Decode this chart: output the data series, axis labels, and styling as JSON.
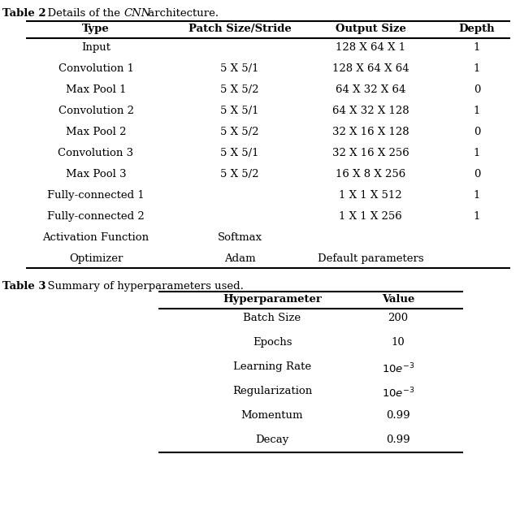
{
  "table2_headers": [
    "Type",
    "Patch Size/Stride",
    "Output Size",
    "Depth"
  ],
  "table2_rows": [
    [
      "Input",
      "",
      "128 X 64 X 1",
      "1"
    ],
    [
      "Convolution 1",
      "5 X 5/1",
      "128 X 64 X 64",
      "1"
    ],
    [
      "Max Pool 1",
      "5 X 5/2",
      "64 X 32 X 64",
      "0"
    ],
    [
      "Convolution 2",
      "5 X 5/1",
      "64 X 32 X 128",
      "1"
    ],
    [
      "Max Pool 2",
      "5 X 5/2",
      "32 X 16 X 128",
      "0"
    ],
    [
      "Convolution 3",
      "5 X 5/1",
      "32 X 16 X 256",
      "1"
    ],
    [
      "Max Pool 3",
      "5 X 5/2",
      "16 X 8 X 256",
      "0"
    ],
    [
      "Fully-connected 1",
      "",
      "1 X 1 X 512",
      "1"
    ],
    [
      "Fully-connected 2",
      "",
      "1 X 1 X 256",
      "1"
    ],
    [
      "Activation Function",
      "Softmax",
      "",
      ""
    ],
    [
      "Optimizer",
      "Adam",
      "Default parameters",
      ""
    ]
  ],
  "table3_headers": [
    "Hyperparameter",
    "Value"
  ],
  "table3_rows": [
    [
      "Batch Size",
      "200"
    ],
    [
      "Epochs",
      "10"
    ],
    [
      "Learning Rate",
      "math:10e^{-3}"
    ],
    [
      "Regularization",
      "math:10e^{-3}"
    ],
    [
      "Momentum",
      "0.99"
    ],
    [
      "Decay",
      "0.99"
    ]
  ],
  "bg_color": "#ffffff",
  "text_color": "#000000",
  "font_size": 9.5,
  "header_font_size": 9.5,
  "lw_thick": 1.5
}
